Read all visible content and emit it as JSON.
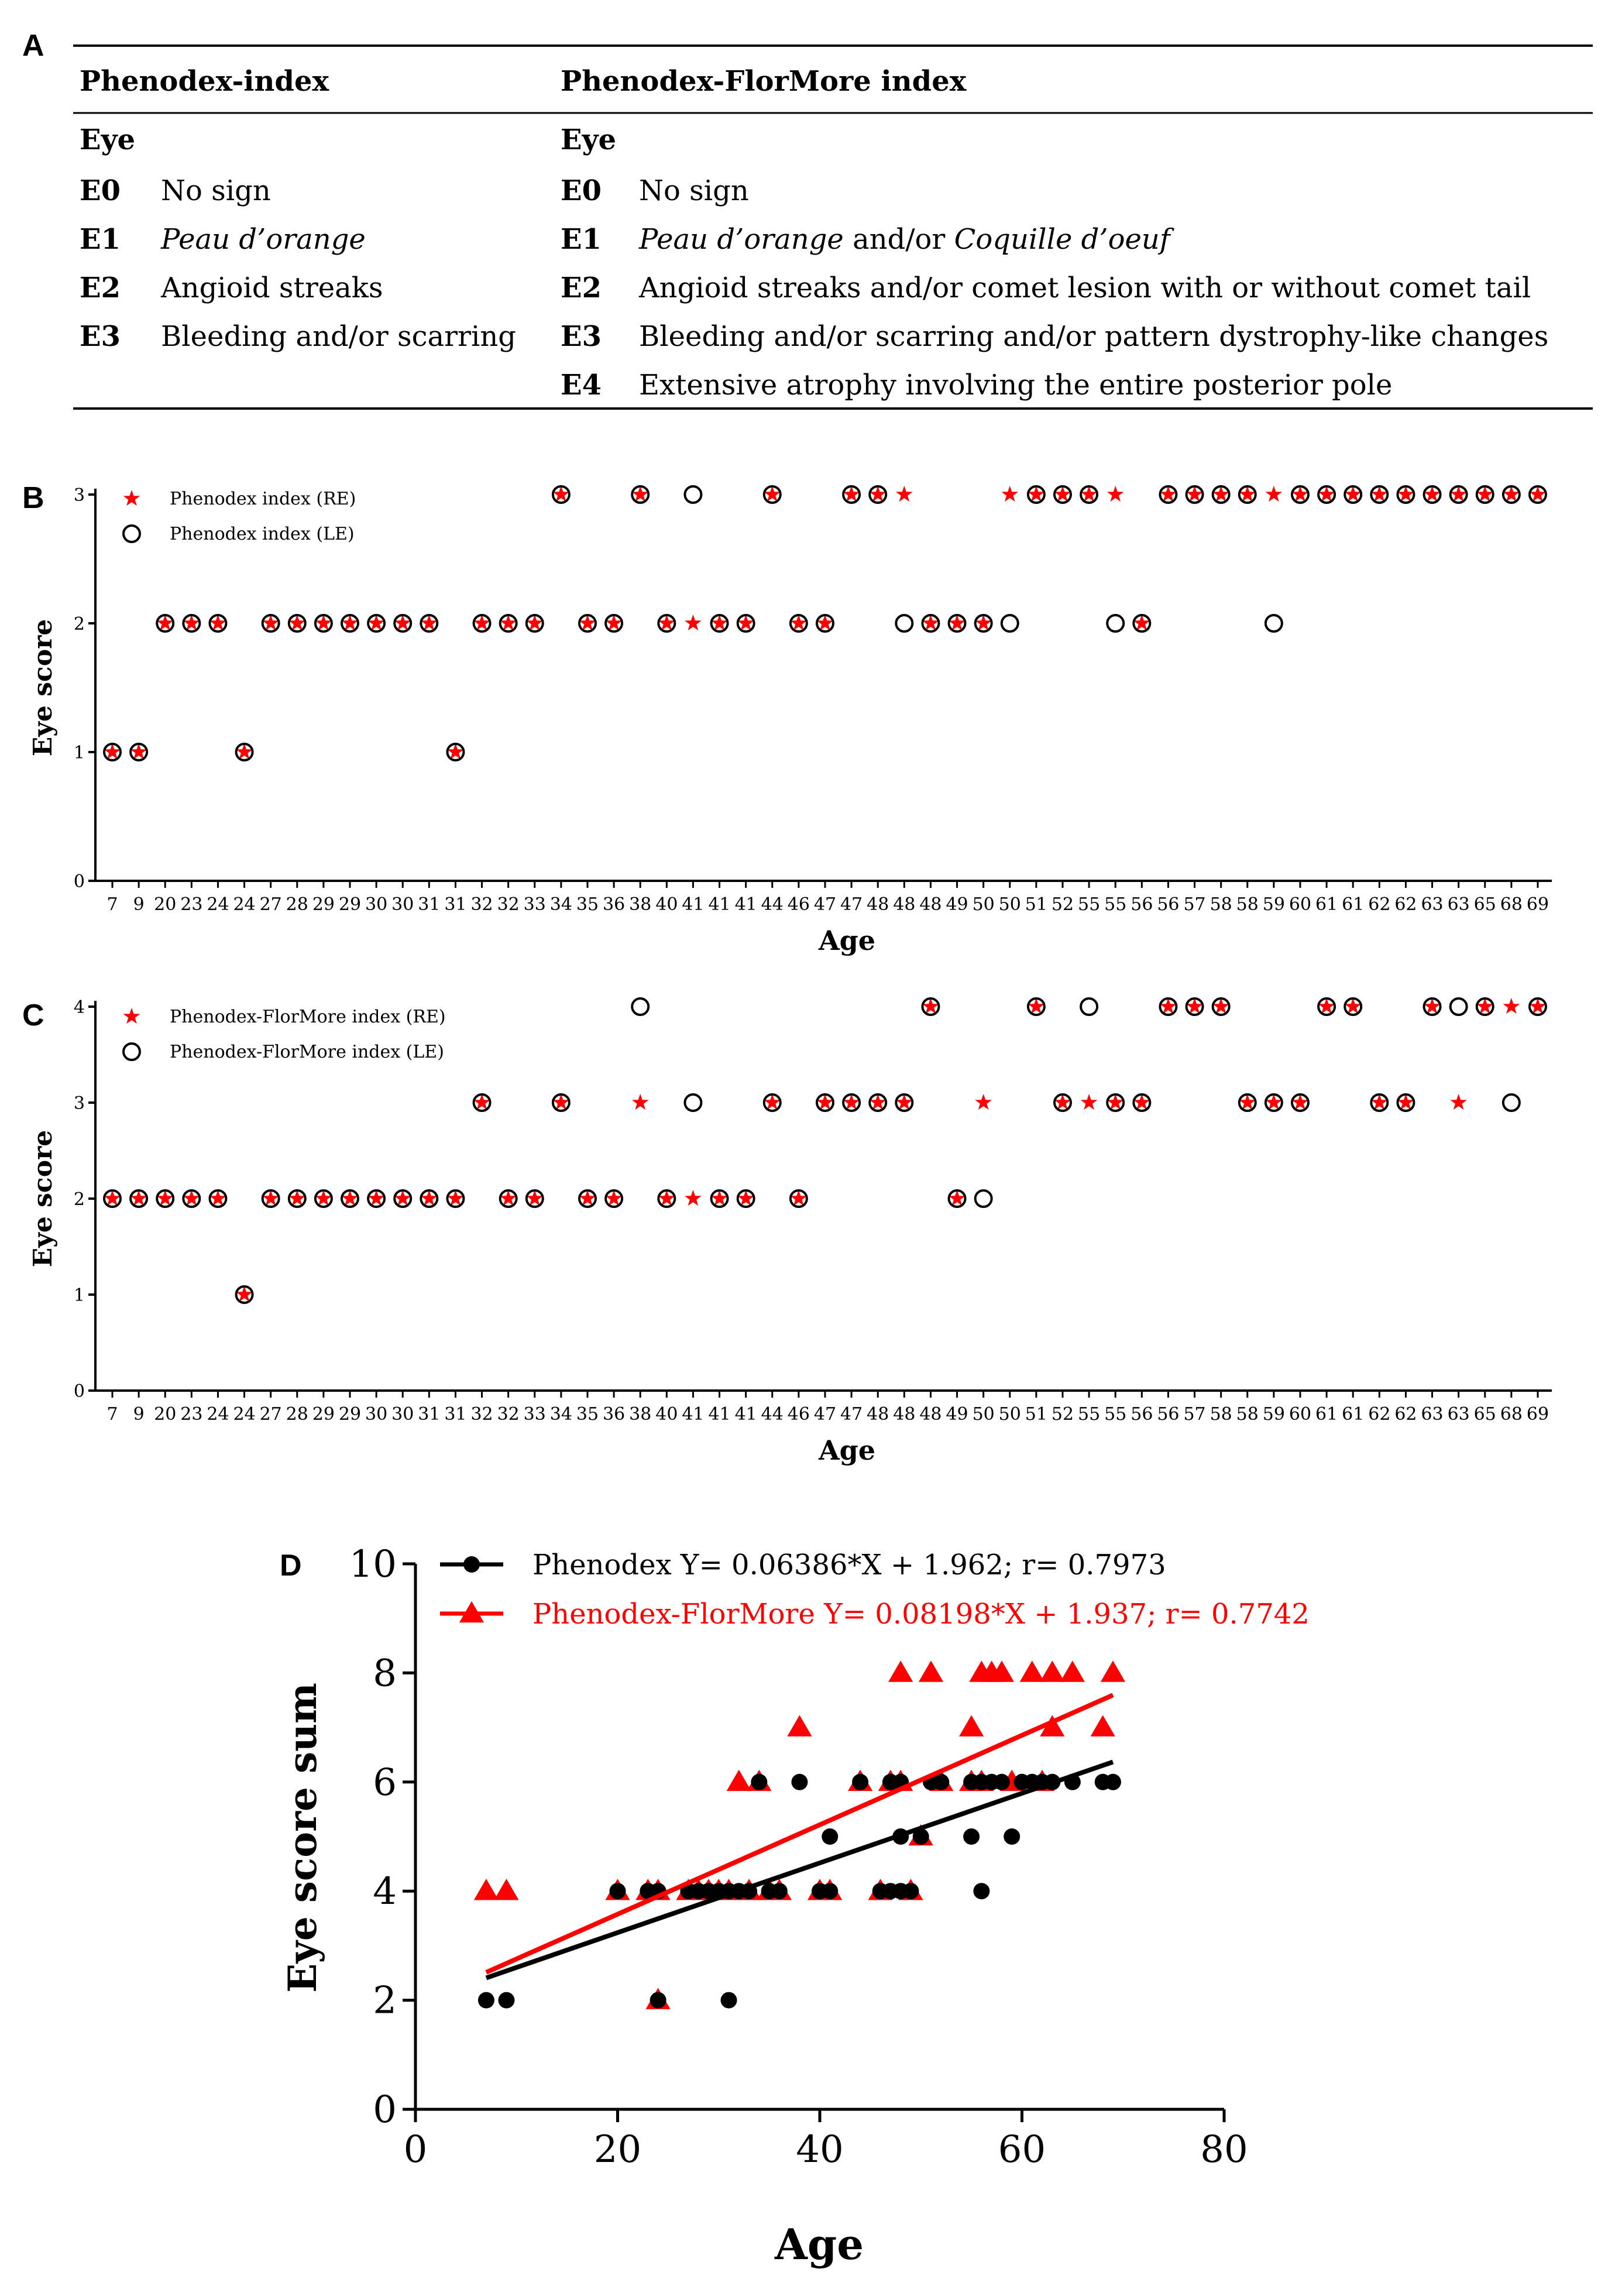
{
  "panel_a": {
    "label": "A",
    "left_header": "Phenodex-index",
    "right_header": "Phenodex-FlorMore index",
    "eye_label_left": "Eye",
    "eye_label_right": "Eye",
    "left_rows": [
      {
        "code": "E0",
        "desc": [
          {
            "t": "No sign",
            "i": false
          }
        ]
      },
      {
        "code": "E1",
        "desc": [
          {
            "t": "Peau d’orange",
            "i": true
          }
        ]
      },
      {
        "code": "E2",
        "desc": [
          {
            "t": "Angioid streaks",
            "i": false
          }
        ]
      },
      {
        "code": "E3",
        "desc": [
          {
            "t": "Bleeding and/or scarring",
            "i": false
          }
        ]
      }
    ],
    "right_rows": [
      {
        "code": "E0",
        "desc": [
          {
            "t": "No sign",
            "i": false
          }
        ]
      },
      {
        "code": "E1",
        "desc": [
          {
            "t": "Peau d’orange",
            "i": true
          },
          {
            "t": " and/or ",
            "i": false
          },
          {
            "t": "Coquille d’oeuf",
            "i": true
          }
        ]
      },
      {
        "code": "E2",
        "desc": [
          {
            "t": "Angioid streaks and/or comet lesion with or without comet tail",
            "i": false
          }
        ]
      },
      {
        "code": "E3",
        "desc": [
          {
            "t": "Bleeding and/or scarring and/or pattern dystrophy-like changes",
            "i": false
          }
        ]
      },
      {
        "code": "E4",
        "desc": [
          {
            "t": "Extensive atrophy involving the entire posterior pole",
            "i": false
          }
        ]
      }
    ]
  },
  "chart_data": [
    {
      "id": "B",
      "type": "scatter",
      "panel_label": "B",
      "xlabel": "Age",
      "ylabel": "Eye score",
      "ylim": [
        0,
        3
      ],
      "yticks": [
        0,
        1,
        2,
        3
      ],
      "x": [
        7,
        9,
        20,
        23,
        24,
        24,
        27,
        28,
        29,
        29,
        30,
        30,
        31,
        31,
        32,
        32,
        33,
        34,
        35,
        36,
        38,
        40,
        41,
        41,
        41,
        44,
        46,
        47,
        47,
        48,
        48,
        48,
        49,
        50,
        50,
        51,
        52,
        55,
        55,
        56,
        56,
        57,
        58,
        58,
        59,
        60,
        61,
        61,
        62,
        62,
        63,
        63,
        65,
        68,
        69
      ],
      "series": [
        {
          "name": "Phenodex index (RE)",
          "marker": "star",
          "color": "#ff0000",
          "values": [
            1,
            1,
            2,
            2,
            2,
            1,
            2,
            2,
            2,
            2,
            2,
            2,
            2,
            1,
            2,
            2,
            2,
            3,
            2,
            2,
            3,
            2,
            2,
            2,
            2,
            3,
            2,
            2,
            3,
            3,
            3,
            2,
            2,
            2,
            3,
            3,
            3,
            3,
            3,
            2,
            3,
            3,
            3,
            3,
            3,
            3,
            3,
            3,
            3,
            3,
            3,
            3,
            3,
            3,
            3
          ]
        },
        {
          "name": "Phenodex index (LE)",
          "marker": "open-circle",
          "color": "#000000",
          "values": [
            1,
            1,
            2,
            2,
            2,
            1,
            2,
            2,
            2,
            2,
            2,
            2,
            2,
            1,
            2,
            2,
            2,
            3,
            2,
            2,
            3,
            2,
            3,
            2,
            2,
            3,
            2,
            2,
            3,
            3,
            2,
            2,
            2,
            2,
            2,
            3,
            3,
            3,
            2,
            2,
            3,
            3,
            3,
            3,
            2,
            3,
            3,
            3,
            3,
            3,
            3,
            3,
            3,
            3,
            3
          ]
        }
      ],
      "legend_position": "top-left"
    },
    {
      "id": "C",
      "type": "scatter",
      "panel_label": "C",
      "xlabel": "Age",
      "ylabel": "Eye score",
      "ylim": [
        0,
        4
      ],
      "yticks": [
        0,
        1,
        2,
        3,
        4
      ],
      "x": [
        7,
        9,
        20,
        23,
        24,
        24,
        27,
        28,
        29,
        29,
        30,
        30,
        31,
        31,
        32,
        32,
        33,
        34,
        35,
        36,
        38,
        40,
        41,
        41,
        41,
        44,
        46,
        47,
        47,
        48,
        48,
        48,
        49,
        50,
        50,
        51,
        52,
        55,
        55,
        56,
        56,
        57,
        58,
        58,
        59,
        60,
        61,
        61,
        62,
        62,
        63,
        63,
        65,
        68,
        69
      ],
      "series": [
        {
          "name": "Phenodex-FlorMore index (RE)",
          "marker": "star",
          "color": "#ff0000",
          "values": [
            2,
            2,
            2,
            2,
            2,
            1,
            2,
            2,
            2,
            2,
            2,
            2,
            2,
            2,
            3,
            2,
            2,
            3,
            2,
            2,
            3,
            2,
            2,
            2,
            2,
            3,
            2,
            3,
            3,
            3,
            3,
            4,
            2,
            3,
            null,
            4,
            3,
            3,
            3,
            3,
            4,
            4,
            4,
            3,
            3,
            3,
            4,
            4,
            3,
            3,
            4,
            3,
            4,
            4,
            4
          ]
        },
        {
          "name": "Phenodex-FlorMore index (LE)",
          "marker": "open-circle",
          "color": "#000000",
          "values": [
            2,
            2,
            2,
            2,
            2,
            1,
            2,
            2,
            2,
            2,
            2,
            2,
            2,
            2,
            3,
            2,
            2,
            3,
            2,
            2,
            4,
            2,
            3,
            2,
            2,
            3,
            2,
            3,
            3,
            3,
            3,
            4,
            2,
            2,
            null,
            4,
            3,
            4,
            3,
            3,
            4,
            4,
            4,
            3,
            3,
            3,
            4,
            4,
            3,
            3,
            4,
            4,
            4,
            3,
            4
          ]
        }
      ],
      "legend_position": "top-left"
    },
    {
      "id": "D",
      "type": "scatter",
      "panel_label": "D",
      "xlabel": "Age",
      "ylabel": "Eye score sum",
      "xlim": [
        0,
        80
      ],
      "ylim": [
        0,
        10
      ],
      "xticks": [
        0,
        20,
        40,
        60,
        80
      ],
      "yticks": [
        0,
        2,
        4,
        6,
        8,
        10
      ],
      "series": [
        {
          "name": "Phenodex Y= 0.06386*X + 1.962; r= 0.7973",
          "marker": "filled-circle",
          "color": "#000000",
          "slope": 0.06386,
          "intercept": 1.962,
          "fit_x": [
            7,
            69
          ],
          "points": [
            [
              7,
              2
            ],
            [
              9,
              2
            ],
            [
              20,
              4
            ],
            [
              23,
              4
            ],
            [
              24,
              4
            ],
            [
              24,
              2
            ],
            [
              27,
              4
            ],
            [
              28,
              4
            ],
            [
              29,
              4
            ],
            [
              30,
              4
            ],
            [
              31,
              2
            ],
            [
              31,
              4
            ],
            [
              32,
              4
            ],
            [
              33,
              4
            ],
            [
              34,
              6
            ],
            [
              35,
              4
            ],
            [
              36,
              4
            ],
            [
              38,
              6
            ],
            [
              40,
              4
            ],
            [
              41,
              4
            ],
            [
              41,
              5
            ],
            [
              44,
              6
            ],
            [
              46,
              4
            ],
            [
              47,
              6
            ],
            [
              47,
              4
            ],
            [
              48,
              4
            ],
            [
              48,
              6
            ],
            [
              48,
              5
            ],
            [
              49,
              4
            ],
            [
              50,
              5
            ],
            [
              51,
              6
            ],
            [
              52,
              6
            ],
            [
              55,
              6
            ],
            [
              55,
              5
            ],
            [
              56,
              4
            ],
            [
              56,
              6
            ],
            [
              57,
              6
            ],
            [
              58,
              6
            ],
            [
              59,
              5
            ],
            [
              60,
              6
            ],
            [
              61,
              6
            ],
            [
              62,
              6
            ],
            [
              63,
              6
            ],
            [
              65,
              6
            ],
            [
              68,
              6
            ],
            [
              69,
              6
            ]
          ]
        },
        {
          "name": "Phenodex-FlorMore Y= 0.08198*X + 1.937; r= 0.7742",
          "marker": "filled-triangle",
          "color": "#ff0000",
          "slope": 0.08198,
          "intercept": 1.937,
          "fit_x": [
            7,
            69
          ],
          "points": [
            [
              7,
              4
            ],
            [
              9,
              4
            ],
            [
              20,
              4
            ],
            [
              23,
              4
            ],
            [
              24,
              4
            ],
            [
              24,
              2
            ],
            [
              27,
              4
            ],
            [
              28,
              4
            ],
            [
              29,
              4
            ],
            [
              30,
              4
            ],
            [
              31,
              4
            ],
            [
              32,
              6
            ],
            [
              33,
              4
            ],
            [
              34,
              6
            ],
            [
              35,
              4
            ],
            [
              36,
              4
            ],
            [
              38,
              7
            ],
            [
              40,
              4
            ],
            [
              41,
              4
            ],
            [
              44,
              6
            ],
            [
              46,
              4
            ],
            [
              47,
              6
            ],
            [
              48,
              6
            ],
            [
              48,
              8
            ],
            [
              49,
              4
            ],
            [
              50,
              5
            ],
            [
              51,
              8
            ],
            [
              52,
              6
            ],
            [
              55,
              7
            ],
            [
              55,
              6
            ],
            [
              56,
              8
            ],
            [
              56,
              6
            ],
            [
              57,
              8
            ],
            [
              58,
              8
            ],
            [
              59,
              6
            ],
            [
              61,
              8
            ],
            [
              62,
              6
            ],
            [
              63,
              8
            ],
            [
              63,
              7
            ],
            [
              65,
              8
            ],
            [
              68,
              7
            ],
            [
              69,
              8
            ]
          ]
        }
      ],
      "legend_position": "top-left"
    }
  ]
}
